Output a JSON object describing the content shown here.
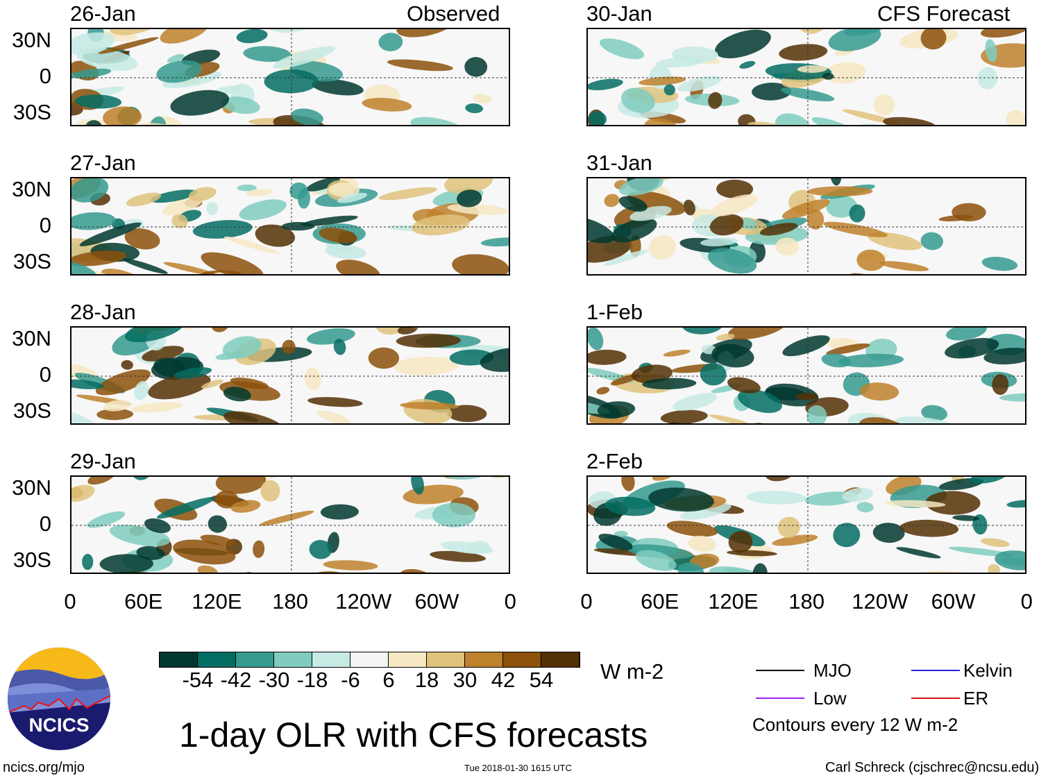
{
  "headers": {
    "observed": "Observed",
    "forecast": "CFS Forecast"
  },
  "panels_left": [
    {
      "date": "26-Jan"
    },
    {
      "date": "27-Jan"
    },
    {
      "date": "28-Jan"
    },
    {
      "date": "29-Jan"
    }
  ],
  "panels_right": [
    {
      "date": "30-Jan"
    },
    {
      "date": "31-Jan"
    },
    {
      "date": "1-Feb"
    },
    {
      "date": "2-Feb"
    }
  ],
  "lat_labels": [
    "30N",
    "0",
    "30S"
  ],
  "lon_labels": [
    "0",
    "60E",
    "120E",
    "180",
    "120W",
    "60W",
    "0"
  ],
  "colorbar": {
    "colors": [
      "#01382f",
      "#036d63",
      "#359a8f",
      "#80cdc0",
      "#c7eae4",
      "#f5f5f5",
      "#f6e8c3",
      "#dfc27c",
      "#be812c",
      "#8c510a",
      "#543005"
    ],
    "labels": [
      "-54",
      "-42",
      "-30",
      "-18",
      "-6",
      "6",
      "18",
      "30",
      "42",
      "54"
    ],
    "units": "W m-2"
  },
  "title": "1-day OLR with CFS forecasts",
  "legend": {
    "items": [
      {
        "label": "MJO",
        "color": "#000000"
      },
      {
        "label": "Kelvin",
        "color": "#2222dd"
      },
      {
        "label": "Low",
        "color": "#a020f0"
      },
      {
        "label": "ER",
        "color": "#dd1111"
      }
    ],
    "note": "Contours every 12 W m-2"
  },
  "logo": {
    "text": "NCICS"
  },
  "footer": {
    "url": "ncics.org/mjo",
    "timestamp": "Tue 2018-01-30 1615 UTC",
    "credit": "Carl Schreck (cjschrec@ncsu.edu)"
  }
}
